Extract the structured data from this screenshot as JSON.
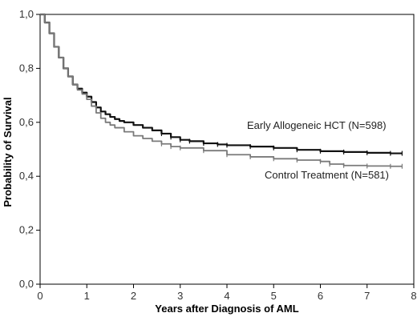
{
  "chart_data": {
    "type": "line",
    "title": "",
    "xlabel": "Years after Diagnosis of AML",
    "ylabel": "Probability of Survival",
    "xlim": [
      0,
      8
    ],
    "ylim": [
      0,
      1
    ],
    "x_ticks": [
      "0",
      "1",
      "2",
      "3",
      "4",
      "5",
      "6",
      "7",
      "8"
    ],
    "y_ticks": [
      "0,0",
      "0,2",
      "0,4",
      "0,6",
      "0,8",
      "1,0"
    ],
    "grid": false,
    "legend": "none",
    "series": [
      {
        "name": "Early Allogeneic HCT (N=598)",
        "color": "#111111",
        "x": [
          0,
          0.1,
          0.2,
          0.3,
          0.4,
          0.5,
          0.6,
          0.7,
          0.8,
          0.9,
          1.0,
          1.1,
          1.2,
          1.3,
          1.4,
          1.5,
          1.6,
          1.7,
          1.8,
          2.0,
          2.2,
          2.4,
          2.6,
          2.8,
          3.0,
          3.2,
          3.5,
          3.8,
          4.0,
          4.5,
          5.0,
          5.5,
          6.0,
          6.5,
          7.0,
          7.5,
          7.75
        ],
        "y": [
          1.0,
          0.97,
          0.93,
          0.88,
          0.84,
          0.8,
          0.77,
          0.74,
          0.725,
          0.71,
          0.695,
          0.675,
          0.655,
          0.64,
          0.63,
          0.62,
          0.612,
          0.605,
          0.6,
          0.59,
          0.58,
          0.57,
          0.558,
          0.545,
          0.535,
          0.53,
          0.522,
          0.518,
          0.515,
          0.51,
          0.505,
          0.498,
          0.493,
          0.49,
          0.487,
          0.485,
          0.485
        ]
      },
      {
        "name": "Control Treatment (N=581)",
        "color": "#7a7a7a",
        "x": [
          0,
          0.1,
          0.2,
          0.3,
          0.4,
          0.5,
          0.6,
          0.7,
          0.8,
          0.9,
          1.0,
          1.1,
          1.2,
          1.3,
          1.4,
          1.5,
          1.6,
          1.8,
          2.0,
          2.2,
          2.4,
          2.6,
          2.8,
          3.0,
          3.5,
          4.0,
          4.5,
          5.0,
          5.5,
          6.0,
          6.2,
          6.5,
          7.0,
          7.5,
          7.75
        ],
        "y": [
          1.0,
          0.97,
          0.93,
          0.88,
          0.84,
          0.8,
          0.77,
          0.74,
          0.72,
          0.705,
          0.685,
          0.66,
          0.635,
          0.615,
          0.6,
          0.59,
          0.58,
          0.565,
          0.55,
          0.54,
          0.53,
          0.52,
          0.51,
          0.505,
          0.495,
          0.48,
          0.472,
          0.465,
          0.46,
          0.455,
          0.445,
          0.44,
          0.438,
          0.437,
          0.437
        ]
      }
    ]
  }
}
